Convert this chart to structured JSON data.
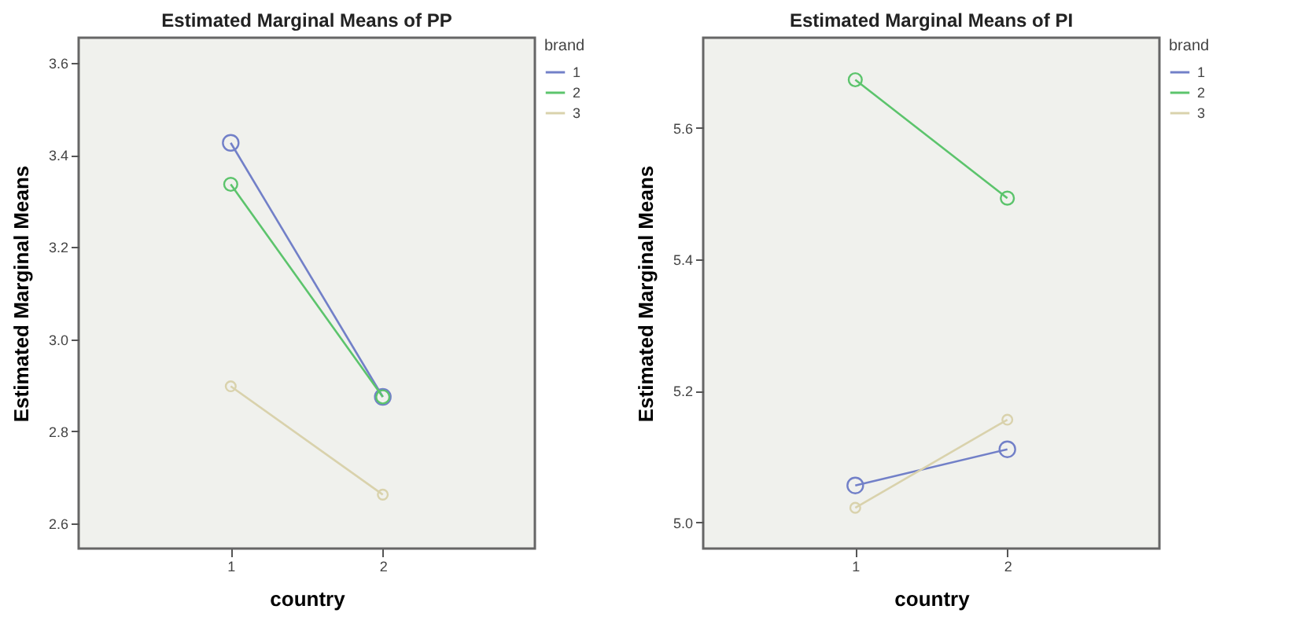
{
  "chart_data": [
    {
      "type": "line",
      "title": "Estimated Marginal Means of PP",
      "xlabel": "country",
      "ylabel": "Estimated Marginal Means",
      "legend_title": "brand",
      "legend": "right",
      "marker": "circle",
      "grid": false,
      "categories": [
        "1",
        "2"
      ],
      "series": [
        {
          "name": "1",
          "color": "#7280c8",
          "values": [
            3.426,
            2.875
          ]
        },
        {
          "name": "2",
          "color": "#5cc46c",
          "values": [
            3.336,
            2.875
          ]
        },
        {
          "name": "3",
          "color": "#d9d2ac",
          "values": [
            2.898,
            2.663
          ]
        }
      ],
      "ylim": [
        2.546,
        3.654
      ],
      "yticks": [
        2.6,
        2.8,
        {
          "value": 3,
          "label": "3.0"
        },
        3.2,
        3.4,
        3.6
      ]
    },
    {
      "type": "line",
      "title": "Estimated Marginal Means of PI",
      "xlabel": "country",
      "ylabel": "Estimated Marginal Means",
      "legend_title": "brand",
      "legend": "right",
      "marker": "circle",
      "grid": false,
      "categories": [
        "1",
        "2"
      ],
      "series": [
        {
          "name": "1",
          "color": "#7280c8",
          "values": [
            5.056,
            5.111
          ]
        },
        {
          "name": "2",
          "color": "#5cc46c",
          "values": [
            5.673,
            5.493
          ]
        },
        {
          "name": "3",
          "color": "#d9d2ac",
          "values": [
            5.022,
            5.156
          ]
        }
      ],
      "ylim": [
        4.96,
        5.737
      ],
      "yticks": [
        {
          "value": 5,
          "label": "5.0"
        },
        5.2,
        5.4,
        5.6
      ]
    }
  ]
}
